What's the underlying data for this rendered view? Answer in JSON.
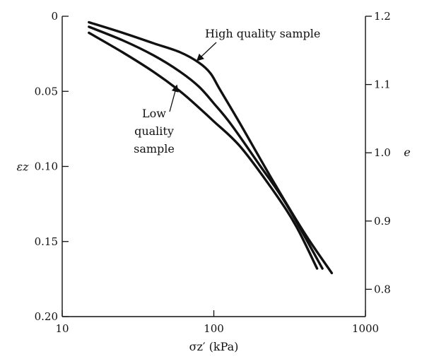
{
  "chart_data": {
    "type": "line",
    "title": "",
    "x_scale": "log",
    "xlim": [
      10,
      1000
    ],
    "x_ticks": [
      10,
      100,
      1000
    ],
    "x_tick_labels": [
      "10",
      "100",
      "1000"
    ],
    "xlabel": "σz′ (kPa)",
    "ylim": [
      0,
      0.2
    ],
    "y_inverted": true,
    "y_ticks": [
      0,
      0.05,
      0.1,
      0.15,
      0.2
    ],
    "y_tick_labels": [
      "0",
      "0.05",
      "0.10",
      "0.15",
      "0.20"
    ],
    "ylabel": "εz",
    "y2lim": [
      0.76,
      1.2
    ],
    "y2_ticks": [
      0.8,
      0.9,
      1.0,
      1.1,
      1.2
    ],
    "y2_tick_labels": [
      "0.8",
      "0.9",
      "1.0",
      "1.1",
      "1.2"
    ],
    "y2label": "e",
    "grid": false,
    "series": [
      {
        "name": "High quality sample",
        "x": [
          15,
          25,
          40,
          60,
          80,
          95,
          110,
          150,
          250,
          400,
          600
        ],
        "y": [
          0.004,
          0.011,
          0.018,
          0.024,
          0.031,
          0.038,
          0.049,
          0.072,
          0.111,
          0.145,
          0.171
        ]
      },
      {
        "name": "",
        "x": [
          15,
          25,
          40,
          60,
          80,
          100,
          130,
          200,
          300,
          520
        ],
        "y": [
          0.007,
          0.016,
          0.026,
          0.037,
          0.047,
          0.058,
          0.072,
          0.099,
          0.125,
          0.168
        ]
      },
      {
        "name": "Low quality sample",
        "x": [
          15,
          25,
          40,
          60,
          80,
          100,
          150,
          250,
          350,
          480
        ],
        "y": [
          0.011,
          0.024,
          0.037,
          0.05,
          0.061,
          0.07,
          0.087,
          0.117,
          0.14,
          0.168
        ]
      }
    ],
    "annotations": [
      {
        "lines": [
          "High quality sample"
        ],
        "points_to_series": 0,
        "arrow_at": [
          75,
          0.031
        ]
      },
      {
        "lines": [
          "Low",
          "quality",
          "sample"
        ],
        "points_to_series": 2,
        "arrow_at": [
          55,
          0.048
        ]
      }
    ]
  }
}
